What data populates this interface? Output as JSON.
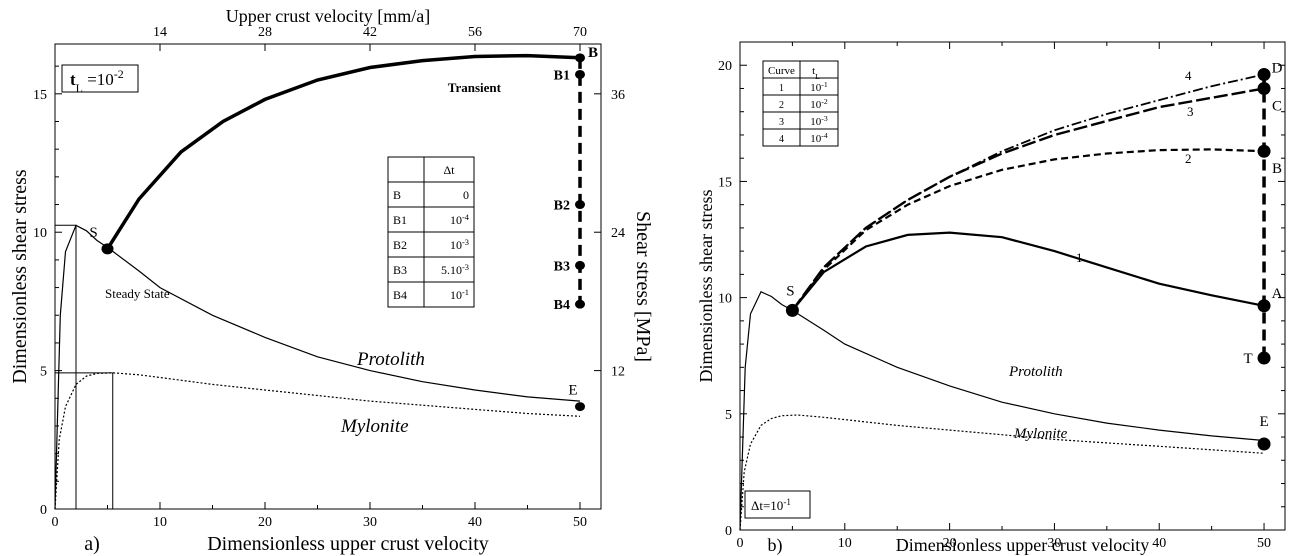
{
  "chart_data": [
    {
      "panel_label": "a)",
      "type": "line",
      "xlabel": "Dimensionless upper crust velocity",
      "ylabel": "Dimensionless shear stress",
      "xlim": [
        0,
        52
      ],
      "ylim": [
        0,
        16.8
      ],
      "x_ticks": [
        "0",
        "10",
        "20",
        "30",
        "40",
        "50"
      ],
      "y_ticks": [
        "0",
        "5",
        "10",
        "15"
      ],
      "top_axis": {
        "label": "Upper crust velocity [mm/a]",
        "ticks": [
          {
            "x": 10,
            "label": "14"
          },
          {
            "x": 20,
            "label": "28"
          },
          {
            "x": 30,
            "label": "42"
          },
          {
            "x": 40,
            "label": "56"
          },
          {
            "x": 50,
            "label": "70"
          }
        ]
      },
      "right_axis": {
        "label": "Shear stress [MPa]",
        "ticks": [
          {
            "y": 5.0,
            "label": "12"
          },
          {
            "y": 10.0,
            "label": "24"
          },
          {
            "y": 15.0,
            "label": "36"
          }
        ]
      },
      "param_box": {
        "label": "t",
        "sub": "L",
        "text": " =10",
        "sup": "-2"
      },
      "series": [
        {
          "name": "Protolith",
          "style": "solid-thin",
          "points": [
            [
              0,
              0
            ],
            [
              0.5,
              7
            ],
            [
              1,
              9.3
            ],
            [
              2,
              10.25
            ],
            [
              3,
              10.05
            ],
            [
              4,
              9.7
            ],
            [
              5,
              9.45
            ],
            [
              8,
              8.6
            ],
            [
              10,
              8.0
            ],
            [
              15,
              7.0
            ],
            [
              20,
              6.2
            ],
            [
              25,
              5.5
            ],
            [
              30,
              5.0
            ],
            [
              35,
              4.6
            ],
            [
              40,
              4.3
            ],
            [
              45,
              4.05
            ],
            [
              50,
              3.9
            ]
          ]
        },
        {
          "name": "Mylonite",
          "style": "dotted",
          "points": [
            [
              0,
              0
            ],
            [
              0.4,
              2.5
            ],
            [
              1,
              3.7
            ],
            [
              2,
              4.5
            ],
            [
              3,
              4.8
            ],
            [
              4,
              4.9
            ],
            [
              5.5,
              4.92
            ],
            [
              8,
              4.85
            ],
            [
              10,
              4.75
            ],
            [
              15,
              4.5
            ],
            [
              20,
              4.3
            ],
            [
              25,
              4.1
            ],
            [
              30,
              3.9
            ],
            [
              35,
              3.75
            ],
            [
              40,
              3.6
            ],
            [
              45,
              3.45
            ],
            [
              50,
              3.35
            ]
          ]
        },
        {
          "name": "Transient",
          "style": "solid-thick",
          "points": [
            [
              5,
              9.4
            ],
            [
              8,
              11.2
            ],
            [
              12,
              12.9
            ],
            [
              16,
              14.0
            ],
            [
              20,
              14.8
            ],
            [
              25,
              15.5
            ],
            [
              30,
              15.95
            ],
            [
              35,
              16.2
            ],
            [
              40,
              16.35
            ],
            [
              45,
              16.38
            ],
            [
              50,
              16.3
            ]
          ]
        }
      ],
      "vertical_segment": {
        "x": 50,
        "y_from": 16.3,
        "y_to": 7.4,
        "style": "dashed-thick"
      },
      "markers": [
        {
          "label": "S",
          "x": 5,
          "y": 9.4
        },
        {
          "label": "B",
          "x": 50,
          "y": 16.3
        },
        {
          "label": "B1",
          "x": 50,
          "y": 15.7
        },
        {
          "label": "B2",
          "x": 50,
          "y": 11.0
        },
        {
          "label": "B3",
          "x": 50,
          "y": 8.8
        },
        {
          "label": "B4",
          "x": 50,
          "y": 7.4
        },
        {
          "label": "E",
          "x": 50,
          "y": 3.7
        }
      ],
      "reference_lines": {
        "x_s": 2,
        "y_s": 10.25,
        "x_m": 5.5,
        "y_m": 4.92
      },
      "annotations": {
        "steady_state": "Steady State",
        "protolith": "Protolith",
        "mylonite": "Mylonite",
        "transient": "Transient"
      },
      "table": {
        "header": [
          "",
          "Δt"
        ],
        "rows": [
          {
            "name": "B",
            "base": "0",
            "exp": ""
          },
          {
            "name": "B1",
            "base": "10",
            "exp": "-4"
          },
          {
            "name": "B2",
            "base": "10",
            "exp": "-3"
          },
          {
            "name": "B3",
            "base": "5.10",
            "exp": "-3"
          },
          {
            "name": "B4",
            "base": "10",
            "exp": "-1"
          }
        ]
      }
    },
    {
      "panel_label": "b)",
      "type": "line",
      "xlabel": "Dimensionless upper crust velocity",
      "ylabel": "Dimensionless shear stress",
      "xlim": [
        0,
        52
      ],
      "ylim": [
        0,
        21
      ],
      "x_ticks": [
        "0",
        "10",
        "20",
        "30",
        "40",
        "50"
      ],
      "y_ticks": [
        "0",
        "5",
        "10",
        "15",
        "20"
      ],
      "param_box": {
        "text": "Δt=10",
        "sup": "-1"
      },
      "series": [
        {
          "name": "Protolith",
          "style": "solid-thin",
          "points": [
            [
              0,
              0
            ],
            [
              0.5,
              7
            ],
            [
              1,
              9.3
            ],
            [
              2,
              10.25
            ],
            [
              3,
              10.05
            ],
            [
              4,
              9.7
            ],
            [
              5,
              9.45
            ],
            [
              8,
              8.6
            ],
            [
              10,
              8.0
            ],
            [
              15,
              7.0
            ],
            [
              20,
              6.2
            ],
            [
              25,
              5.5
            ],
            [
              30,
              5.0
            ],
            [
              35,
              4.6
            ],
            [
              40,
              4.3
            ],
            [
              45,
              4.05
            ],
            [
              50,
              3.85
            ]
          ]
        },
        {
          "name": "Mylonite",
          "style": "dotted",
          "points": [
            [
              0,
              0
            ],
            [
              0.4,
              2.5
            ],
            [
              1,
              3.7
            ],
            [
              2,
              4.5
            ],
            [
              3,
              4.8
            ],
            [
              4,
              4.92
            ],
            [
              5.5,
              4.95
            ],
            [
              8,
              4.85
            ],
            [
              10,
              4.75
            ],
            [
              15,
              4.5
            ],
            [
              20,
              4.3
            ],
            [
              25,
              4.1
            ],
            [
              30,
              3.9
            ],
            [
              35,
              3.75
            ],
            [
              40,
              3.6
            ],
            [
              45,
              3.45
            ],
            [
              50,
              3.3
            ]
          ]
        },
        {
          "name": "1",
          "style": "solid-medium",
          "points": [
            [
              5,
              9.45
            ],
            [
              8,
              11.1
            ],
            [
              12,
              12.2
            ],
            [
              16,
              12.7
            ],
            [
              20,
              12.8
            ],
            [
              25,
              12.6
            ],
            [
              30,
              12.0
            ],
            [
              35,
              11.3
            ],
            [
              40,
              10.6
            ],
            [
              45,
              10.1
            ],
            [
              50,
              9.65
            ]
          ]
        },
        {
          "name": "2",
          "style": "dashed",
          "points": [
            [
              5,
              9.45
            ],
            [
              8,
              11.2
            ],
            [
              12,
              12.9
            ],
            [
              16,
              14.0
            ],
            [
              20,
              14.8
            ],
            [
              25,
              15.5
            ],
            [
              30,
              15.95
            ],
            [
              35,
              16.2
            ],
            [
              40,
              16.35
            ],
            [
              45,
              16.38
            ],
            [
              50,
              16.3
            ]
          ]
        },
        {
          "name": "3",
          "style": "long-dashed",
          "points": [
            [
              5,
              9.45
            ],
            [
              8,
              11.3
            ],
            [
              12,
              13.0
            ],
            [
              16,
              14.2
            ],
            [
              20,
              15.2
            ],
            [
              25,
              16.2
            ],
            [
              30,
              17.0
            ],
            [
              35,
              17.6
            ],
            [
              40,
              18.2
            ],
            [
              45,
              18.6
            ],
            [
              50,
              19.0
            ]
          ]
        },
        {
          "name": "4",
          "style": "dash-dot",
          "points": [
            [
              5,
              9.45
            ],
            [
              8,
              11.3
            ],
            [
              12,
              13.0
            ],
            [
              16,
              14.2
            ],
            [
              20,
              15.2
            ],
            [
              25,
              16.3
            ],
            [
              30,
              17.2
            ],
            [
              35,
              17.9
            ],
            [
              40,
              18.5
            ],
            [
              45,
              19.1
            ],
            [
              50,
              19.6
            ]
          ]
        }
      ],
      "vertical_segment": {
        "x": 50,
        "y_from": 19.6,
        "y_to": 7.4,
        "style": "dashed-thick"
      },
      "markers": [
        {
          "label": "S",
          "x": 5,
          "y": 9.45
        },
        {
          "label": "D",
          "x": 50,
          "y": 19.6
        },
        {
          "label": "C",
          "x": 50,
          "y": 19.0
        },
        {
          "label": "B",
          "x": 50,
          "y": 16.3
        },
        {
          "label": "A",
          "x": 50,
          "y": 9.65
        },
        {
          "label": "T",
          "x": 50,
          "y": 7.4
        },
        {
          "label": "E",
          "x": 50,
          "y": 3.7
        }
      ],
      "annotations": {
        "protolith": "Protolith",
        "mylonite": "Mylonite"
      },
      "table": {
        "header": [
          "Curve",
          "t",
          "L"
        ],
        "rows": [
          {
            "name": "1",
            "base": "10",
            "exp": "-1"
          },
          {
            "name": "2",
            "base": "10",
            "exp": "-2"
          },
          {
            "name": "3",
            "base": "10",
            "exp": "-3"
          },
          {
            "name": "4",
            "base": "10",
            "exp": "-4"
          }
        ]
      }
    }
  ]
}
